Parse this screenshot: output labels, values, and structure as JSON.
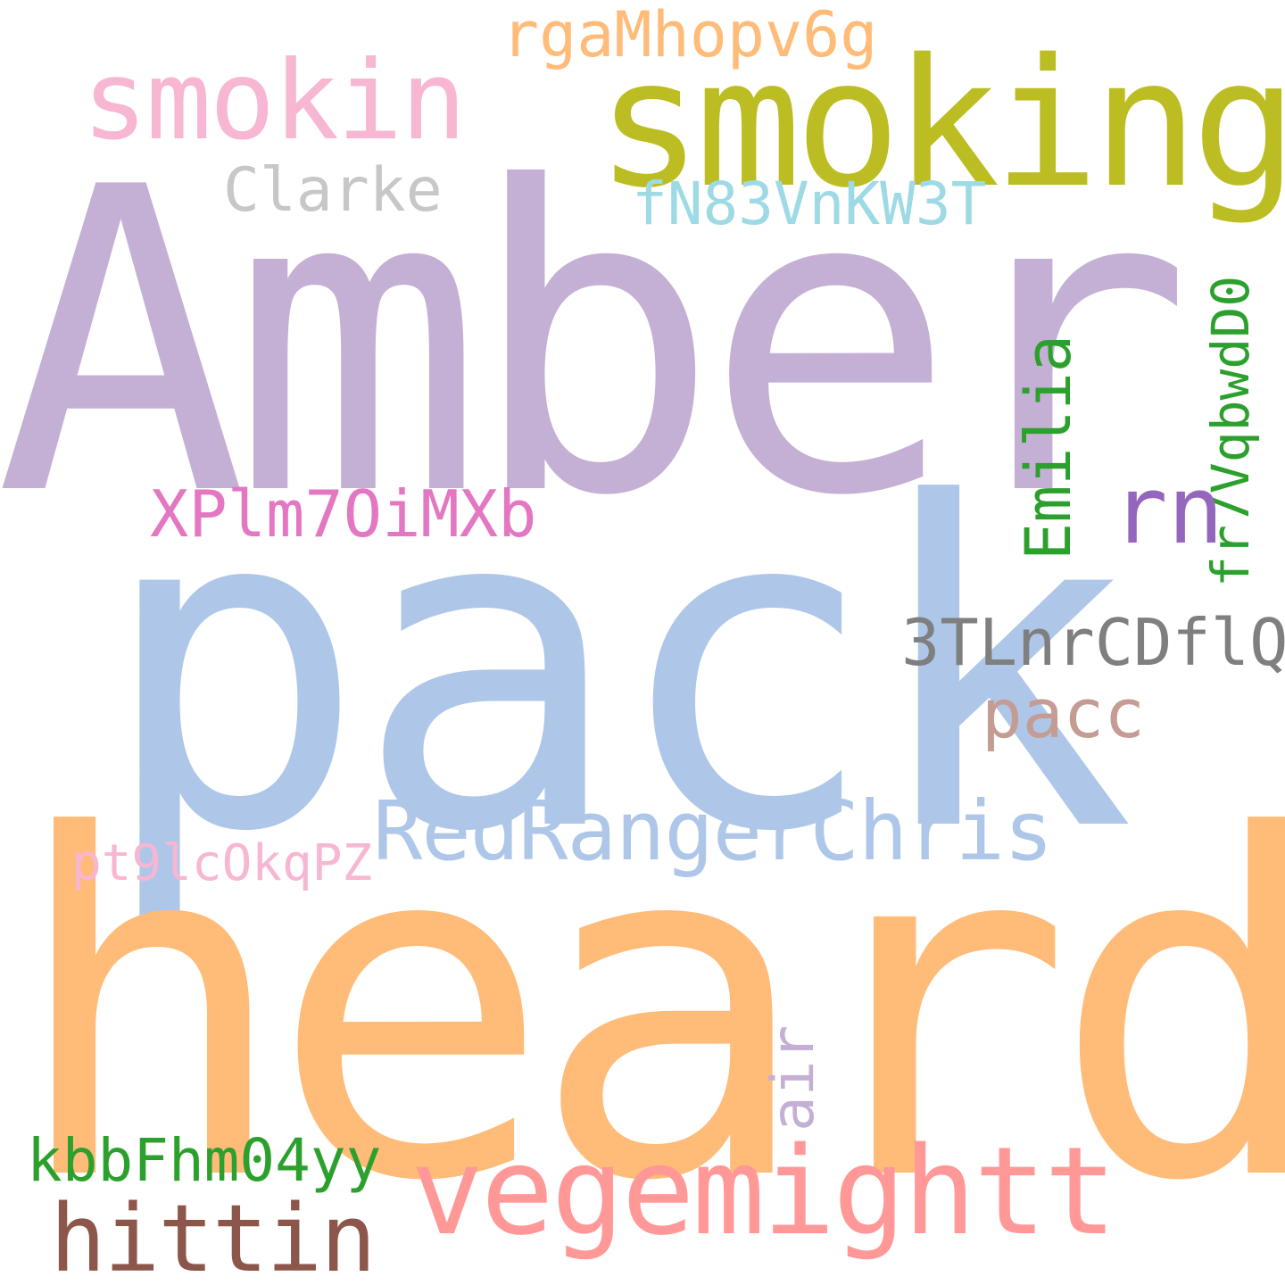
{
  "words": [
    {
      "id": "amber",
      "text": "Amber",
      "color": "#c5b0d5"
    },
    {
      "id": "pack",
      "text": "pack",
      "color": "#aec7e8"
    },
    {
      "id": "heard",
      "text": "heard",
      "color": "#ffbb78"
    },
    {
      "id": "smoking",
      "text": "smoking",
      "color": "#bcbd22"
    },
    {
      "id": "smokin",
      "text": "smokin",
      "color": "#f7b6d2"
    },
    {
      "id": "rgaMhopv6g",
      "text": "rgaMhopv6g",
      "color": "#ffbb78"
    },
    {
      "id": "clarke",
      "text": "Clarke",
      "color": "#c7c7c7"
    },
    {
      "id": "fN83VnKW3T",
      "text": "fN83VnKW3T",
      "color": "#9edae5"
    },
    {
      "id": "emilia",
      "text": "Emilia",
      "color": "#2ca02c"
    },
    {
      "id": "fr7VqbwdD0",
      "text": "fr7VqbwdD0",
      "color": "#2ca02c"
    },
    {
      "id": "rn",
      "text": "rn",
      "color": "#9467bd"
    },
    {
      "id": "XPlm7OiMXb",
      "text": "XPlm7OiMXb",
      "color": "#e377c2"
    },
    {
      "id": "3TLnrCDflQ",
      "text": "3TLnrCDflQ",
      "color": "#7f7f7f"
    },
    {
      "id": "pacc",
      "text": "pacc",
      "color": "#c49c94"
    },
    {
      "id": "RedRangerChris",
      "text": "RedRangerChris",
      "color": "#aec7e8"
    },
    {
      "id": "pt9lcOkqPZ",
      "text": "pt9lcOkqPZ",
      "color": "#f7b6d2"
    },
    {
      "id": "air",
      "text": "air",
      "color": "#c5b0d5"
    },
    {
      "id": "kbbFhm04yy",
      "text": "kbbFhm04yy",
      "color": "#2ca02c"
    },
    {
      "id": "vegemightt",
      "text": "vegemightt",
      "color": "#ff9896"
    },
    {
      "id": "hittin",
      "text": "hittin",
      "color": "#8c564b"
    }
  ]
}
